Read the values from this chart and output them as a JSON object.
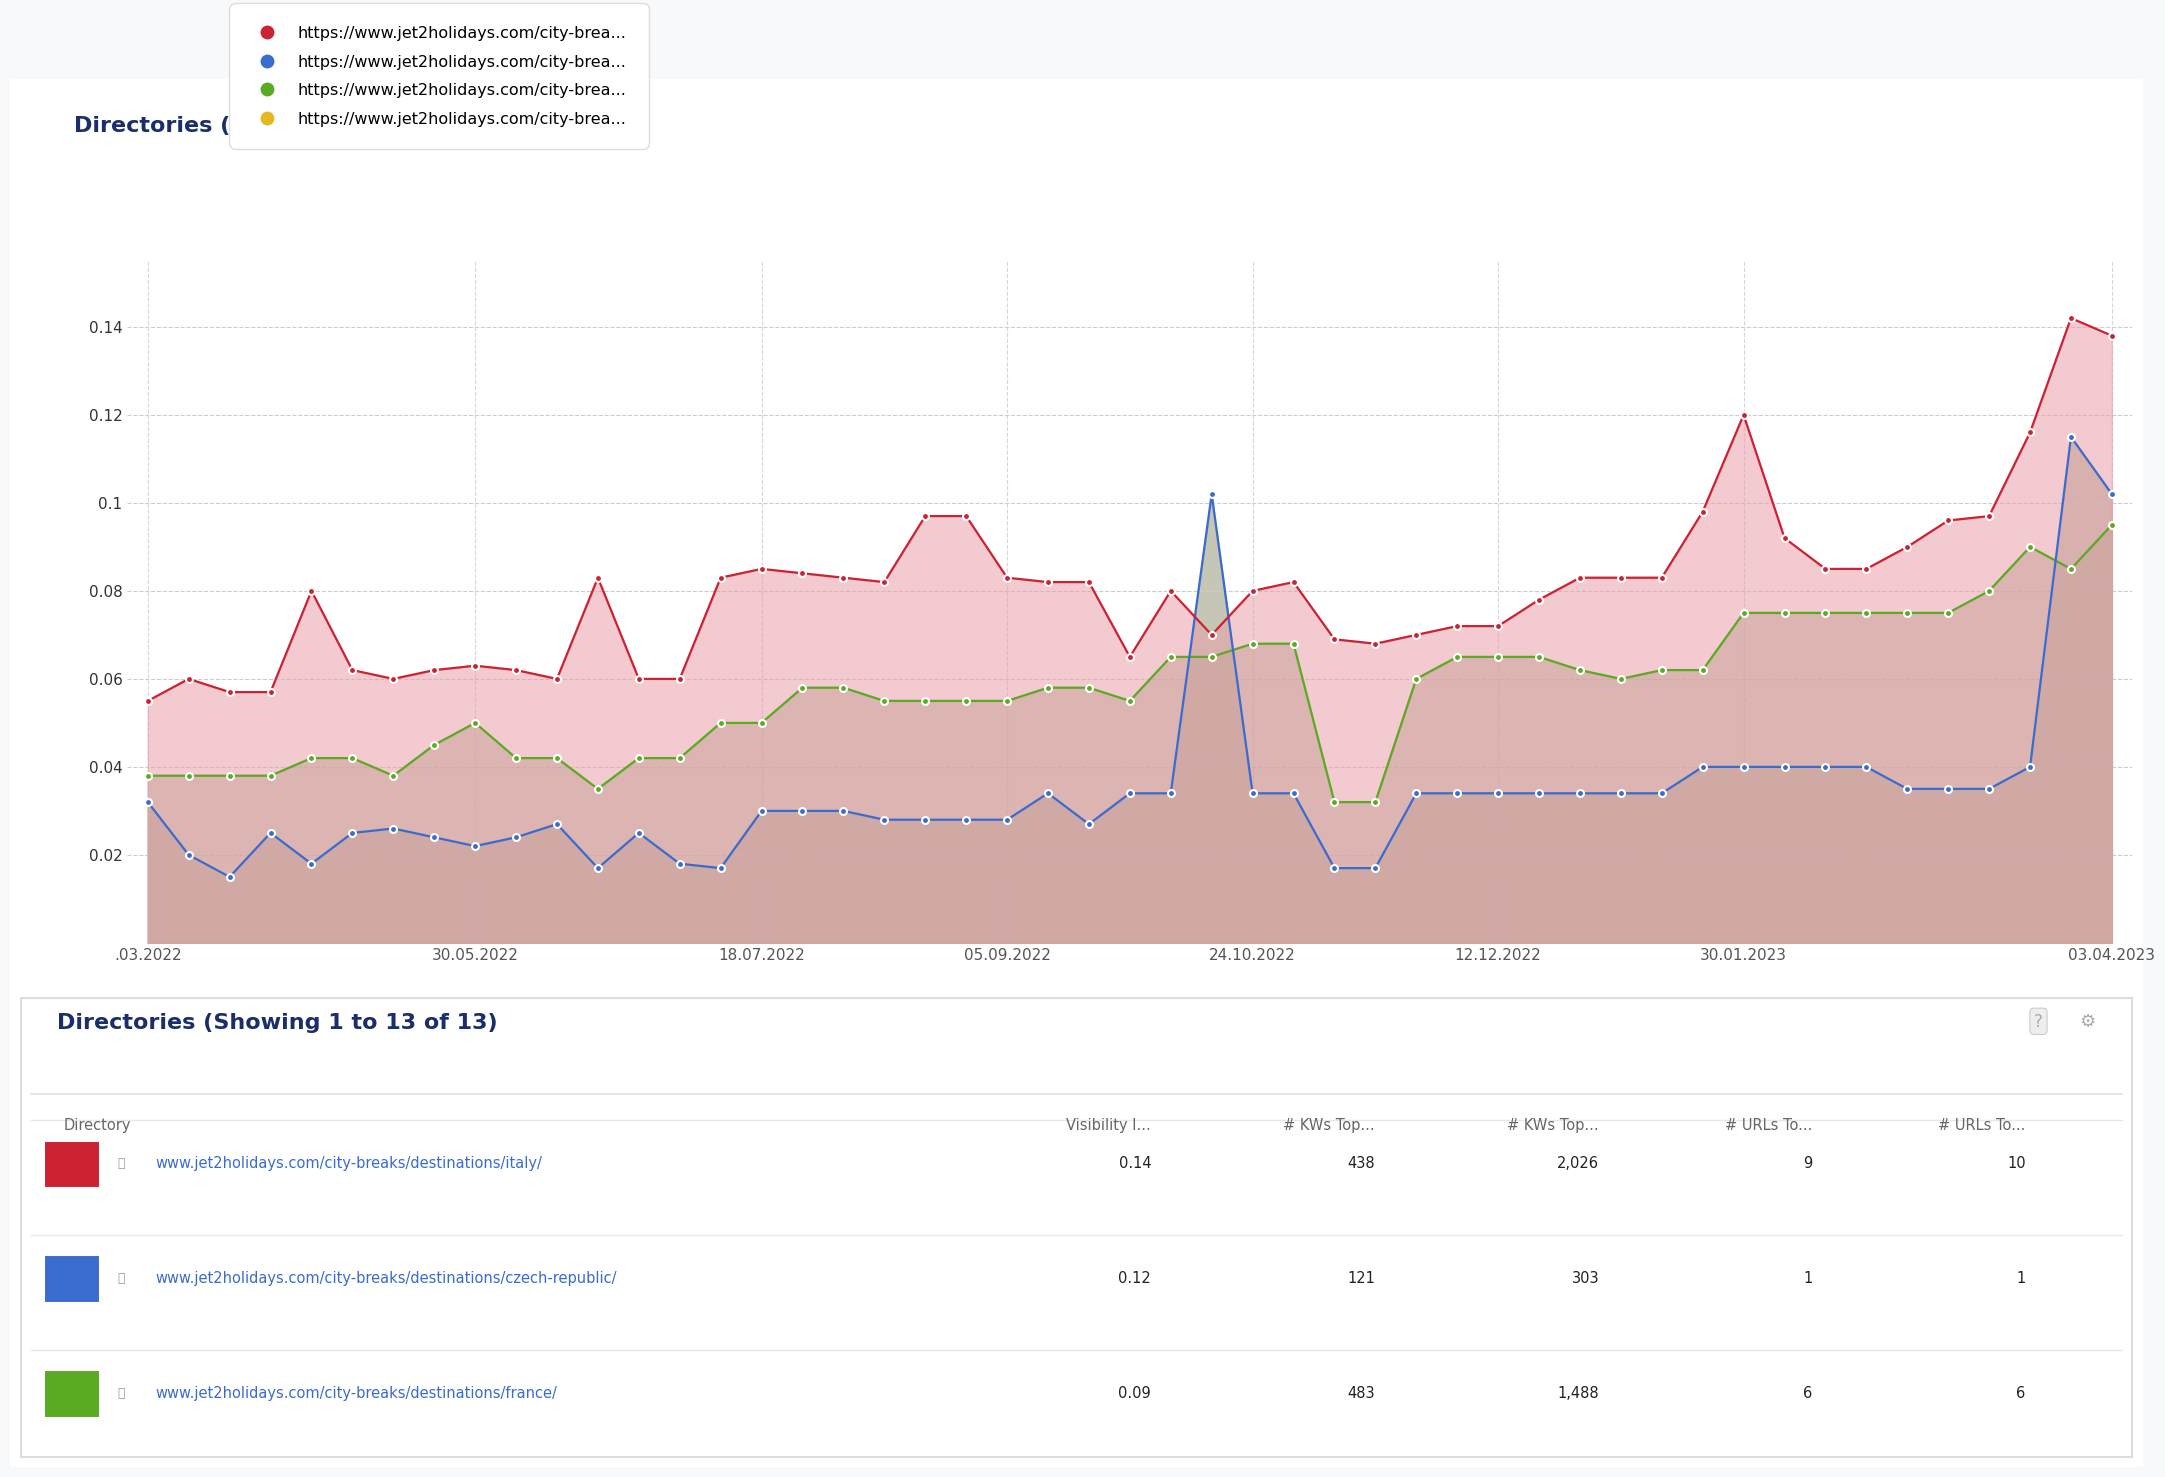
{
  "title": "Directories (Showing 1 to 13 of 13)",
  "title2": "Directories (Showing 1 to 13 of 13)",
  "background_color": "#f8f9fb",
  "chart_bg_color": "#ffffff",
  "title_color": "#1a2e6b",
  "title_fontsize": 16,
  "x_labels": [
    ".03.2022",
    "30.05.2022",
    "18.07.2022",
    "05.09.2022",
    "24.10.2022",
    "12.12.2022",
    "30.01.2023",
    "03.04.2023"
  ],
  "ylim": [
    0,
    0.155
  ],
  "yticks": [
    0.02,
    0.04,
    0.06,
    0.08,
    0.1,
    0.12,
    0.14
  ],
  "legend_labels": [
    "https://www.jet2holidays.com/city-brea...",
    "https://www.jet2holidays.com/city-brea...",
    "https://www.jet2holidays.com/city-brea...",
    "https://www.jet2holidays.com/city-brea..."
  ],
  "legend_colors": [
    "#cc2233",
    "#3a6bcf",
    "#5aaa22",
    "#e6b820"
  ],
  "red_series": [
    0.055,
    0.06,
    0.057,
    0.057,
    0.08,
    0.062,
    0.06,
    0.062,
    0.063,
    0.062,
    0.06,
    0.083,
    0.06,
    0.06,
    0.083,
    0.085,
    0.084,
    0.083,
    0.082,
    0.097,
    0.097,
    0.083,
    0.082,
    0.082,
    0.065,
    0.08,
    0.07,
    0.08,
    0.082,
    0.069,
    0.068,
    0.07,
    0.072,
    0.072,
    0.078,
    0.083,
    0.083,
    0.083,
    0.098,
    0.12,
    0.092,
    0.085,
    0.085,
    0.09,
    0.096,
    0.097,
    0.116,
    0.142,
    0.138
  ],
  "blue_series": [
    0.032,
    0.02,
    0.015,
    0.025,
    0.018,
    0.025,
    0.026,
    0.024,
    0.022,
    0.024,
    0.027,
    0.017,
    0.025,
    0.018,
    0.017,
    0.03,
    0.03,
    0.03,
    0.028,
    0.028,
    0.028,
    0.028,
    0.034,
    0.027,
    0.034,
    0.034,
    0.102,
    0.034,
    0.034,
    0.017,
    0.017,
    0.034,
    0.034,
    0.034,
    0.034,
    0.034,
    0.034,
    0.034,
    0.04,
    0.04,
    0.04,
    0.04,
    0.04,
    0.035,
    0.035,
    0.035,
    0.04,
    0.115,
    0.102
  ],
  "green_series": [
    0.038,
    0.038,
    0.038,
    0.038,
    0.042,
    0.042,
    0.038,
    0.045,
    0.05,
    0.042,
    0.042,
    0.035,
    0.042,
    0.042,
    0.05,
    0.05,
    0.058,
    0.058,
    0.055,
    0.055,
    0.055,
    0.055,
    0.058,
    0.058,
    0.055,
    0.065,
    0.065,
    0.068,
    0.068,
    0.032,
    0.032,
    0.06,
    0.065,
    0.065,
    0.065,
    0.062,
    0.06,
    0.062,
    0.062,
    0.075,
    0.075,
    0.075,
    0.075,
    0.075,
    0.075,
    0.08,
    0.09,
    0.085,
    0.095
  ],
  "n_points": 49,
  "x_tick_positions": [
    0,
    8,
    15,
    21,
    27,
    33,
    39,
    48
  ],
  "table_headers": [
    "Directory",
    "Visibility I...",
    "# KWs Top...",
    "# KWs Top...",
    "# URLs To...",
    "# URLs To..."
  ],
  "table_rows": [
    [
      "www.jet2holidays.com/city-breaks/destinations/italy/",
      "0.14",
      "438",
      "2,026",
      "9",
      "10",
      "#cc2233"
    ],
    [
      "www.jet2holidays.com/city-breaks/destinations/czech-republic/",
      "0.12",
      "121",
      "303",
      "1",
      "1",
      "#3a6bcf"
    ],
    [
      "www.jet2holidays.com/city-breaks/destinations/france/",
      "0.09",
      "483",
      "1,488",
      "6",
      "6",
      "#5aaa22"
    ]
  ]
}
